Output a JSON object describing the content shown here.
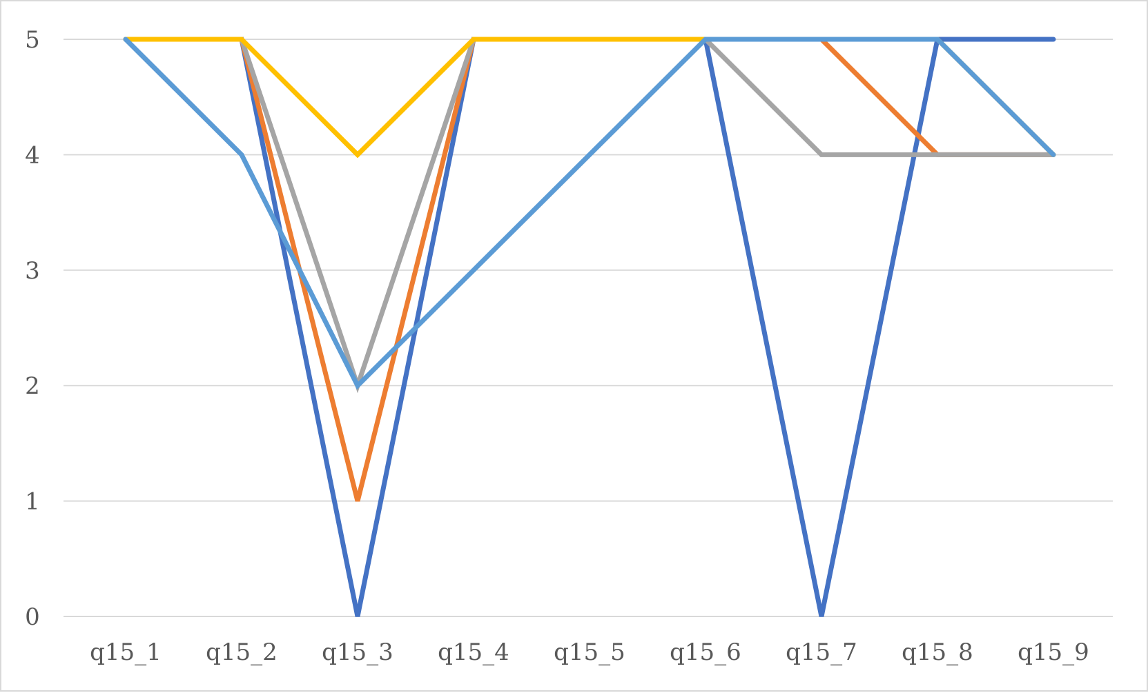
{
  "chart_data": {
    "type": "line",
    "title": "",
    "xlabel": "",
    "ylabel": "",
    "categories": [
      "q15_1",
      "q15_2",
      "q15_3",
      "q15_4",
      "q15_5",
      "q15_6",
      "q15_7",
      "q15_8",
      "q15_9"
    ],
    "ylim": [
      0,
      5
    ],
    "yticks": [
      "0",
      "1",
      "2",
      "3",
      "4",
      "5"
    ],
    "grid": true,
    "legend": "none",
    "series": [
      {
        "color": "#4472c4",
        "values": [
          5,
          5,
          0,
          5,
          5,
          5,
          0,
          5,
          5
        ]
      },
      {
        "color": "#ed7d31",
        "values": [
          5,
          5,
          1,
          5,
          5,
          5,
          5,
          4,
          4
        ]
      },
      {
        "color": "#a5a5a5",
        "values": [
          5,
          5,
          2,
          5,
          5,
          5,
          4,
          4,
          4
        ]
      },
      {
        "color": "#ffc000",
        "values": [
          5,
          5,
          4,
          5,
          5,
          5,
          5,
          5,
          4
        ]
      },
      {
        "color": "#5b9bd5",
        "values": [
          5,
          4,
          2,
          3,
          4,
          5,
          5,
          5,
          4
        ]
      }
    ],
    "gridline_color": "#d9d9d9",
    "tick_label_color": "#595959"
  }
}
